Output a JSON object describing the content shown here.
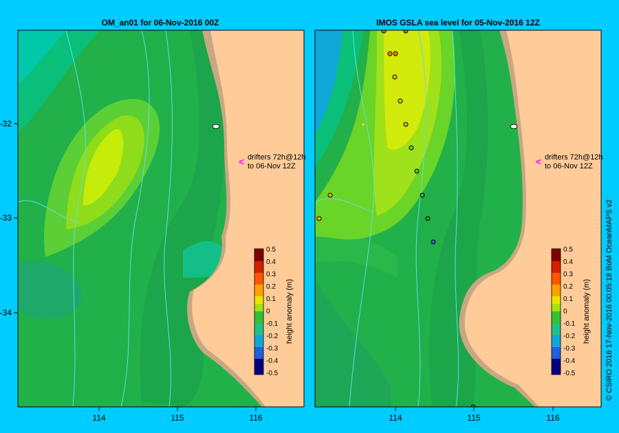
{
  "panels": [
    {
      "id": "left",
      "title": "OM_an01  for 06-Nov-2016 00Z"
    },
    {
      "id": "right",
      "title": "IMOS GSLA sea level  for 05-Nov-2016 12Z"
    }
  ],
  "axes": {
    "lat_ticks": [
      "-32",
      "-33",
      "-34"
    ],
    "lon_ticks": [
      "114",
      "115",
      "116"
    ]
  },
  "annotation": {
    "line1": "drifters 72h@12h",
    "line2": "to 06-Nov 12Z",
    "arrow_glyph": "<",
    "arrow_color": "#ff00ff"
  },
  "colorbar": {
    "label": "height anomaly (m)",
    "ticks": [
      "0.5",
      "0.4",
      "0.3",
      "0.2",
      "0.1",
      "0",
      "-0.1",
      "-0.2",
      "-0.3",
      "-0.4",
      "-0.5"
    ],
    "colors": [
      "#7f0000",
      "#d42000",
      "#ff5500",
      "#ffa000",
      "#e8e600",
      "#a8e010",
      "#33c033",
      "#20c08a",
      "#10a8d8",
      "#2060e0",
      "#000080"
    ]
  },
  "credit": "© CSIRO 2016   17-Nov-2016 00:05:18 BoM OceanMAPS v2",
  "colors": {
    "background": "#00ccff",
    "land": "#ffcc99",
    "shelf": "#c8a882",
    "sea_base": "#22b04a"
  }
}
